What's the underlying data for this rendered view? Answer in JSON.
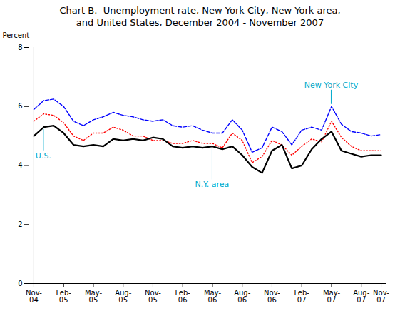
{
  "chart_data": {
    "type": "line",
    "title": "Chart B.  Unemployment rate, New York City, New York area,\nand United States, December 2004 - November 2007",
    "ylabel": "Percent",
    "categories": [
      "Nov-\n04",
      null,
      null,
      "Feb-\n05",
      null,
      null,
      "May-\n05",
      null,
      null,
      "Aug-\n05",
      null,
      null,
      "Nov-\n05",
      null,
      null,
      "Feb-\n06",
      null,
      null,
      "May-\n06",
      null,
      null,
      "Aug-\n06",
      null,
      null,
      "Nov-\n06",
      null,
      null,
      "Feb-\n07",
      null,
      null,
      "May-\n07",
      null,
      null,
      "Aug-\n07",
      null,
      "Nov-\n07"
    ],
    "series": [
      {
        "name": "New York City",
        "color": "#0000FF",
        "line_style": "dashed",
        "values": [
          5.9,
          6.2,
          6.25,
          6.0,
          5.5,
          5.35,
          5.55,
          5.65,
          5.8,
          5.7,
          5.65,
          5.55,
          5.5,
          5.55,
          5.35,
          5.3,
          5.35,
          5.2,
          5.1,
          5.1,
          5.55,
          5.2,
          4.45,
          4.6,
          5.3,
          5.15,
          4.7,
          5.2,
          5.3,
          5.2,
          6.0,
          5.4,
          5.15,
          5.1,
          5.0,
          5.05
        ]
      },
      {
        "name": "N.Y. area",
        "color": "#FF0000",
        "line_style": "dotted",
        "values": [
          5.5,
          5.75,
          5.7,
          5.45,
          5.0,
          4.85,
          5.1,
          5.1,
          5.3,
          5.2,
          5.0,
          5.0,
          4.85,
          4.85,
          4.75,
          4.75,
          4.85,
          4.75,
          4.75,
          4.6,
          5.1,
          4.85,
          4.1,
          4.3,
          4.85,
          4.7,
          4.35,
          4.65,
          4.9,
          4.8,
          5.5,
          4.95,
          4.65,
          4.5,
          4.5,
          4.5
        ]
      },
      {
        "name": "U.S.",
        "color": "#000000",
        "line_style": "solid",
        "values": [
          5.0,
          5.3,
          5.35,
          5.1,
          4.7,
          4.65,
          4.7,
          4.65,
          4.9,
          4.85,
          4.9,
          4.85,
          4.95,
          4.9,
          4.65,
          4.6,
          4.65,
          4.6,
          4.65,
          4.55,
          4.65,
          4.35,
          3.95,
          3.75,
          4.5,
          4.7,
          3.9,
          4.0,
          4.55,
          4.9,
          5.15,
          4.5,
          4.4,
          4.3,
          4.35,
          4.35
        ]
      }
    ],
    "annotations": [
      {
        "text": "U.S.",
        "color": "#00AACC"
      },
      {
        "text": "N.Y. area",
        "color": "#00AACC"
      },
      {
        "text": "New York City",
        "color": "#00AACC"
      }
    ],
    "ylim": [
      0,
      8
    ],
    "yticks": [
      0,
      2,
      4,
      6,
      8
    ],
    "grid": false
  }
}
